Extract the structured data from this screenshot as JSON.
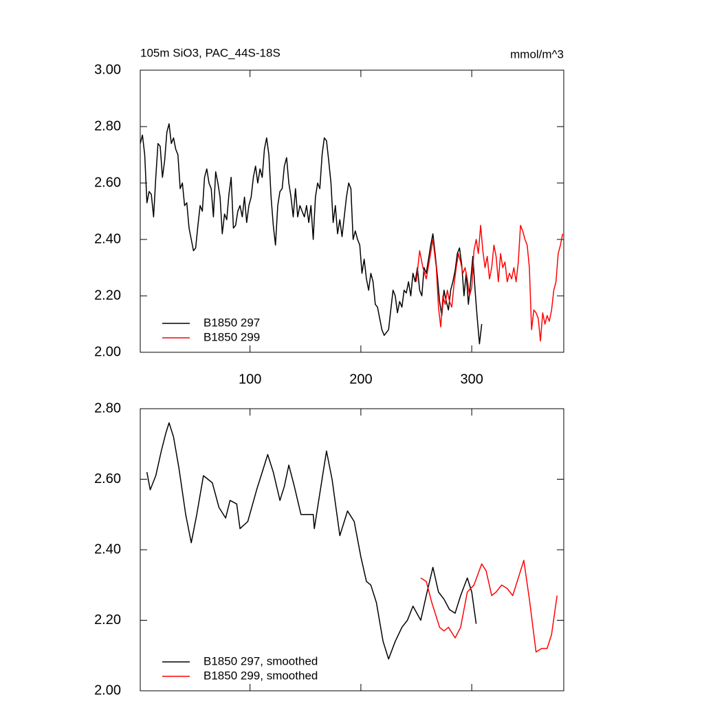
{
  "chart_data": [
    {
      "type": "line",
      "title": "105m SiO3, PAC_44S-18S",
      "units": "mmol/m^3",
      "xlim": [
        1,
        383
      ],
      "xticks": [
        100,
        200,
        300
      ],
      "ylim": [
        2.0,
        3.0
      ],
      "yticks": [
        {
          "value": 2.0,
          "label": "2.00"
        },
        {
          "value": 2.2,
          "label": "2.20"
        },
        {
          "value": 2.4,
          "label": "2.40"
        },
        {
          "value": 2.6,
          "label": "2.60"
        },
        {
          "value": 2.8,
          "label": "2.80"
        },
        {
          "value": 3.0,
          "label": "3.00"
        }
      ],
      "series": [
        {
          "name": "B1850 297",
          "color": "#000000",
          "x": [
            1,
            3,
            5,
            7,
            9,
            11,
            13,
            15,
            17,
            19,
            21,
            23,
            25,
            27,
            29,
            31,
            33,
            35,
            37,
            39,
            41,
            43,
            45,
            47,
            49,
            51,
            53,
            55,
            57,
            59,
            61,
            63,
            65,
            67,
            69,
            71,
            73,
            75,
            77,
            79,
            81,
            83,
            85,
            87,
            89,
            91,
            93,
            95,
            97,
            99,
            101,
            103,
            105,
            107,
            109,
            111,
            113,
            115,
            117,
            119,
            121,
            123,
            125,
            127,
            129,
            131,
            133,
            135,
            137,
            139,
            141,
            143,
            145,
            147,
            149,
            151,
            153,
            155,
            157,
            159,
            161,
            163,
            165,
            167,
            169,
            171,
            173,
            175,
            177,
            179,
            181,
            183,
            185,
            187,
            189,
            191,
            193,
            195,
            197,
            199,
            201,
            203,
            205,
            207,
            209,
            211,
            213,
            215,
            217,
            219,
            221,
            223,
            225,
            227,
            229,
            231,
            233,
            235,
            237,
            239,
            241,
            243,
            245,
            247,
            249,
            251,
            253,
            255,
            257,
            259,
            261,
            263,
            265,
            267,
            269,
            271,
            273,
            275,
            277,
            279,
            281,
            283,
            285,
            287,
            289,
            291,
            293,
            295,
            297,
            299,
            301,
            303,
            305,
            307,
            309
          ],
          "values": [
            2.74,
            2.77,
            2.7,
            2.53,
            2.57,
            2.56,
            2.48,
            2.62,
            2.74,
            2.73,
            2.62,
            2.68,
            2.78,
            2.81,
            2.74,
            2.76,
            2.72,
            2.7,
            2.58,
            2.6,
            2.52,
            2.53,
            2.44,
            2.4,
            2.36,
            2.37,
            2.45,
            2.52,
            2.5,
            2.62,
            2.65,
            2.6,
            2.58,
            2.48,
            2.64,
            2.6,
            2.55,
            2.42,
            2.49,
            2.47,
            2.56,
            2.62,
            2.44,
            2.45,
            2.5,
            2.52,
            2.48,
            2.55,
            2.46,
            2.52,
            2.55,
            2.62,
            2.66,
            2.6,
            2.65,
            2.62,
            2.72,
            2.76,
            2.7,
            2.55,
            2.45,
            2.38,
            2.52,
            2.57,
            2.58,
            2.66,
            2.69,
            2.6,
            2.55,
            2.48,
            2.58,
            2.48,
            2.52,
            2.5,
            2.48,
            2.52,
            2.46,
            2.52,
            2.4,
            2.55,
            2.6,
            2.58,
            2.7,
            2.76,
            2.75,
            2.68,
            2.6,
            2.46,
            2.52,
            2.42,
            2.47,
            2.41,
            2.48,
            2.55,
            2.6,
            2.58,
            2.4,
            2.43,
            2.4,
            2.38,
            2.28,
            2.33,
            2.26,
            2.22,
            2.28,
            2.25,
            2.17,
            2.16,
            2.12,
            2.08,
            2.06,
            2.07,
            2.08,
            2.15,
            2.22,
            2.2,
            2.14,
            2.18,
            2.16,
            2.22,
            2.21,
            2.25,
            2.2,
            2.28,
            2.25,
            2.3,
            2.22,
            2.2,
            2.3,
            2.28,
            2.33,
            2.38,
            2.42,
            2.35,
            2.27,
            2.18,
            2.13,
            2.22,
            2.18,
            2.15,
            2.22,
            2.25,
            2.29,
            2.35,
            2.37,
            2.31,
            2.2,
            2.28,
            2.17,
            2.25,
            2.34,
            2.22,
            2.12,
            2.03,
            2.1
          ]
        },
        {
          "name": "B1850 299",
          "color": "#ff0000",
          "x": [
            250,
            253,
            256,
            259,
            262,
            265,
            268,
            270,
            272,
            274,
            276,
            278,
            280,
            282,
            284,
            286,
            288,
            290,
            292,
            294,
            296,
            298,
            300,
            302,
            304,
            306,
            308,
            310,
            312,
            314,
            316,
            318,
            320,
            322,
            324,
            326,
            328,
            330,
            332,
            334,
            336,
            338,
            340,
            342,
            344,
            346,
            348,
            350,
            352,
            354,
            356,
            358,
            360,
            362,
            364,
            366,
            368,
            370,
            372,
            374,
            376,
            378,
            380,
            382
          ],
          "values": [
            2.25,
            2.36,
            2.3,
            2.26,
            2.33,
            2.4,
            2.3,
            2.16,
            2.09,
            2.2,
            2.17,
            2.22,
            2.18,
            2.16,
            2.24,
            2.3,
            2.35,
            2.32,
            2.28,
            2.3,
            2.26,
            2.2,
            2.23,
            2.36,
            2.4,
            2.35,
            2.45,
            2.36,
            2.3,
            2.34,
            2.26,
            2.3,
            2.38,
            2.34,
            2.25,
            2.35,
            2.3,
            2.32,
            2.25,
            2.28,
            2.26,
            2.3,
            2.25,
            2.32,
            2.45,
            2.43,
            2.4,
            2.38,
            2.3,
            2.08,
            2.15,
            2.14,
            2.12,
            2.04,
            2.14,
            2.1,
            2.13,
            2.11,
            2.15,
            2.22,
            2.25,
            2.35,
            2.38,
            2.42
          ]
        }
      ]
    },
    {
      "type": "line",
      "xlim": [
        1,
        383
      ],
      "ylim": [
        2.0,
        2.8
      ],
      "yticks": [
        {
          "value": 2.0,
          "label": "2.00"
        },
        {
          "value": 2.2,
          "label": "2.20"
        },
        {
          "value": 2.4,
          "label": "2.40"
        },
        {
          "value": 2.6,
          "label": "2.60"
        },
        {
          "value": 2.8,
          "label": "2.80"
        }
      ],
      "series": [
        {
          "name": "B1850 297, smoothed",
          "color": "#000000",
          "x": [
            7,
            10,
            15,
            20,
            24,
            27,
            31,
            36,
            42,
            47,
            52,
            58,
            66,
            72,
            78,
            82,
            88,
            91,
            98,
            106,
            112,
            116,
            121,
            127,
            131,
            135,
            140,
            146,
            152,
            157,
            158,
            163,
            169,
            174,
            181,
            188,
            194,
            200,
            205,
            209,
            214,
            220,
            225,
            231,
            237,
            242,
            247,
            254,
            259,
            265,
            270,
            275,
            280,
            285,
            290,
            296,
            300,
            304
          ],
          "values": [
            2.62,
            2.57,
            2.61,
            2.68,
            2.73,
            2.76,
            2.72,
            2.63,
            2.5,
            2.42,
            2.5,
            2.61,
            2.59,
            2.52,
            2.49,
            2.54,
            2.53,
            2.46,
            2.48,
            2.57,
            2.63,
            2.67,
            2.62,
            2.54,
            2.58,
            2.64,
            2.58,
            2.5,
            2.5,
            2.5,
            2.46,
            2.56,
            2.68,
            2.6,
            2.44,
            2.51,
            2.48,
            2.38,
            2.31,
            2.3,
            2.25,
            2.14,
            2.09,
            2.14,
            2.18,
            2.2,
            2.24,
            2.2,
            2.27,
            2.35,
            2.28,
            2.26,
            2.23,
            2.22,
            2.27,
            2.32,
            2.28,
            2.19
          ]
        },
        {
          "name": "B1850 299, smoothed",
          "color": "#ff0000",
          "x": [
            254,
            259,
            264,
            268,
            271,
            275,
            279,
            285,
            290,
            296,
            302,
            309,
            313,
            318,
            322,
            327,
            332,
            337,
            342,
            347,
            352,
            358,
            363,
            368,
            372,
            377
          ],
          "values": [
            2.32,
            2.31,
            2.25,
            2.21,
            2.18,
            2.17,
            2.18,
            2.15,
            2.18,
            2.28,
            2.3,
            2.36,
            2.34,
            2.27,
            2.28,
            2.3,
            2.29,
            2.27,
            2.32,
            2.37,
            2.26,
            2.11,
            2.12,
            2.12,
            2.16,
            2.27
          ]
        }
      ]
    }
  ]
}
